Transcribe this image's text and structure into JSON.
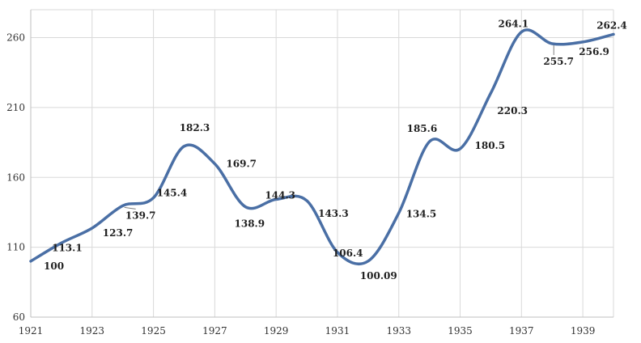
{
  "chart_data": {
    "type": "line",
    "x": [
      1921,
      1922,
      1923,
      1924,
      1925,
      1926,
      1927,
      1928,
      1929,
      1930,
      1931,
      1932,
      1933,
      1934,
      1935,
      1936,
      1937,
      1938,
      1939,
      1940
    ],
    "series": [
      {
        "values": [
          100,
          113.1,
          123.7,
          139.7,
          145.4,
          182.3,
          169.7,
          138.9,
          144.3,
          143.3,
          106.4,
          100.09,
          134.5,
          185.6,
          180.5,
          220.3,
          264.1,
          255.7,
          256.9,
          262.4
        ],
        "labels": [
          "100",
          "113.1",
          "123.7",
          "139.7",
          "145.4",
          "182.3",
          "169.7",
          "138.9",
          "144.3",
          "143.3",
          "106.4",
          "100.09",
          "134.5",
          "185.6",
          "180.5",
          "220.3",
          "264.1",
          "255.7",
          "256.9",
          "262.4"
        ],
        "color": "#4a6fa5"
      }
    ],
    "x_ticks": [
      "1921",
      "1923",
      "1925",
      "1927",
      "1929",
      "1931",
      "1933",
      "1935",
      "1937",
      "1939"
    ],
    "y_ticks": [
      "60",
      "110",
      "160",
      "210",
      "260"
    ],
    "xlim": [
      1921,
      1940
    ],
    "ylim": [
      60,
      280
    ],
    "grid": true,
    "title": "",
    "xlabel": "",
    "ylabel": ""
  }
}
